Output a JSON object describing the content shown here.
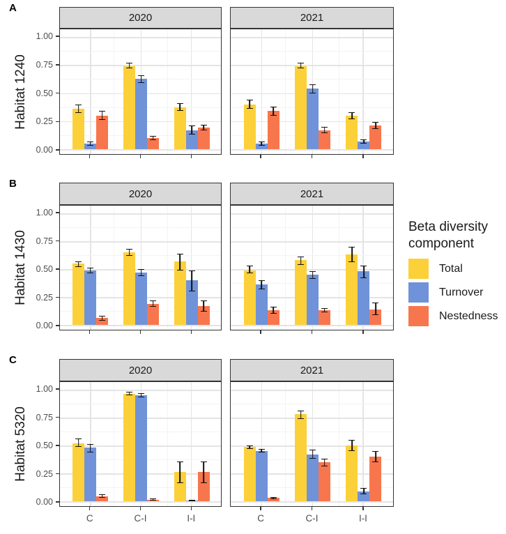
{
  "legend": {
    "title": "Beta diversity component",
    "items": [
      {
        "label": "Total",
        "color": "#FCD039"
      },
      {
        "label": "Turnover",
        "color": "#7092D8"
      },
      {
        "label": "Nestedness",
        "color": "#F8764D"
      }
    ]
  },
  "chart_data": {
    "type": "bar",
    "facet_columns": [
      "2020",
      "2021"
    ],
    "facet_rows": [
      {
        "letter": "A",
        "ylabel": "Habitat 1240"
      },
      {
        "letter": "B",
        "ylabel": "Habitat 1430"
      },
      {
        "letter": "C",
        "ylabel": "Habitat 5320"
      }
    ],
    "categories": [
      "C",
      "C-I",
      "I-I"
    ],
    "series": [
      "Total",
      "Turnover",
      "Nestedness"
    ],
    "colors": {
      "Total": "#FCD039",
      "Turnover": "#7092D8",
      "Nestedness": "#F8764D"
    },
    "ylim": [
      0,
      1
    ],
    "yticks": [
      0,
      0.25,
      0.5,
      0.75,
      1
    ],
    "ytick_labels": [
      "0.00",
      "0.25",
      "0.50",
      "0.75",
      "1.00"
    ],
    "grid": "major and minor, light gray on white",
    "legend_position": "right",
    "error_bars": "value, lower, upper",
    "values": {
      "A": {
        "2020": {
          "C": {
            "Total": [
              0.36,
              0.32,
              0.4
            ],
            "Turnover": [
              0.05,
              0.03,
              0.07
            ],
            "Nestedness": [
              0.3,
              0.26,
              0.34
            ]
          },
          "C-I": {
            "Total": [
              0.74,
              0.72,
              0.77
            ],
            "Turnover": [
              0.63,
              0.59,
              0.66
            ],
            "Nestedness": [
              0.1,
              0.08,
              0.12
            ]
          },
          "I-I": {
            "Total": [
              0.37,
              0.34,
              0.41
            ],
            "Turnover": [
              0.17,
              0.13,
              0.21
            ],
            "Nestedness": [
              0.19,
              0.17,
              0.22
            ]
          }
        },
        "2021": {
          "C": {
            "Total": [
              0.4,
              0.36,
              0.44
            ],
            "Turnover": [
              0.05,
              0.03,
              0.07
            ],
            "Nestedness": [
              0.34,
              0.3,
              0.38
            ]
          },
          "C-I": {
            "Total": [
              0.74,
              0.72,
              0.77
            ],
            "Turnover": [
              0.54,
              0.5,
              0.58
            ],
            "Nestedness": [
              0.17,
              0.14,
              0.2
            ]
          },
          "I-I": {
            "Total": [
              0.3,
              0.27,
              0.33
            ],
            "Turnover": [
              0.07,
              0.05,
              0.09
            ],
            "Nestedness": [
              0.21,
              0.18,
              0.24
            ]
          }
        }
      },
      "B": {
        "2020": {
          "C": {
            "Total": [
              0.55,
              0.52,
              0.57
            ],
            "Turnover": [
              0.49,
              0.46,
              0.51
            ],
            "Nestedness": [
              0.06,
              0.04,
              0.08
            ]
          },
          "C-I": {
            "Total": [
              0.65,
              0.62,
              0.68
            ],
            "Turnover": [
              0.47,
              0.44,
              0.5
            ],
            "Nestedness": [
              0.19,
              0.16,
              0.22
            ]
          },
          "I-I": {
            "Total": [
              0.57,
              0.49,
              0.64
            ],
            "Turnover": [
              0.4,
              0.3,
              0.49
            ],
            "Nestedness": [
              0.17,
              0.12,
              0.22
            ]
          }
        },
        "2021": {
          "C": {
            "Total": [
              0.49,
              0.46,
              0.53
            ],
            "Turnover": [
              0.36,
              0.32,
              0.4
            ],
            "Nestedness": [
              0.13,
              0.1,
              0.16
            ]
          },
          "C-I": {
            "Total": [
              0.58,
              0.54,
              0.61
            ],
            "Turnover": [
              0.45,
              0.41,
              0.48
            ],
            "Nestedness": [
              0.13,
              0.11,
              0.15
            ]
          },
          "I-I": {
            "Total": [
              0.63,
              0.56,
              0.7
            ],
            "Turnover": [
              0.48,
              0.42,
              0.53
            ],
            "Nestedness": [
              0.14,
              0.09,
              0.2
            ]
          }
        }
      },
      "C": {
        "2020": {
          "C": {
            "Total": [
              0.52,
              0.49,
              0.56
            ],
            "Turnover": [
              0.48,
              0.44,
              0.51
            ],
            "Nestedness": [
              0.045,
              0.03,
              0.06
            ]
          },
          "C-I": {
            "Total": [
              0.96,
              0.95,
              0.98
            ],
            "Turnover": [
              0.95,
              0.93,
              0.97
            ],
            "Nestedness": [
              0.015,
              0.005,
              0.025
            ]
          },
          "I-I": {
            "Total": [
              0.26,
              0.165,
              0.355
            ],
            "Turnover": [
              0.005,
              0.0,
              0.01
            ],
            "Nestedness": [
              0.26,
              0.165,
              0.355
            ]
          }
        },
        "2021": {
          "C": {
            "Total": [
              0.49,
              0.47,
              0.5
            ],
            "Turnover": [
              0.45,
              0.44,
              0.47
            ],
            "Nestedness": [
              0.03,
              0.02,
              0.04
            ]
          },
          "C-I": {
            "Total": [
              0.78,
              0.74,
              0.81
            ],
            "Turnover": [
              0.42,
              0.38,
              0.46
            ],
            "Nestedness": [
              0.35,
              0.31,
              0.38
            ]
          },
          "I-I": {
            "Total": [
              0.5,
              0.45,
              0.55
            ],
            "Turnover": [
              0.09,
              0.06,
              0.12
            ],
            "Nestedness": [
              0.4,
              0.35,
              0.45
            ]
          }
        }
      }
    }
  }
}
